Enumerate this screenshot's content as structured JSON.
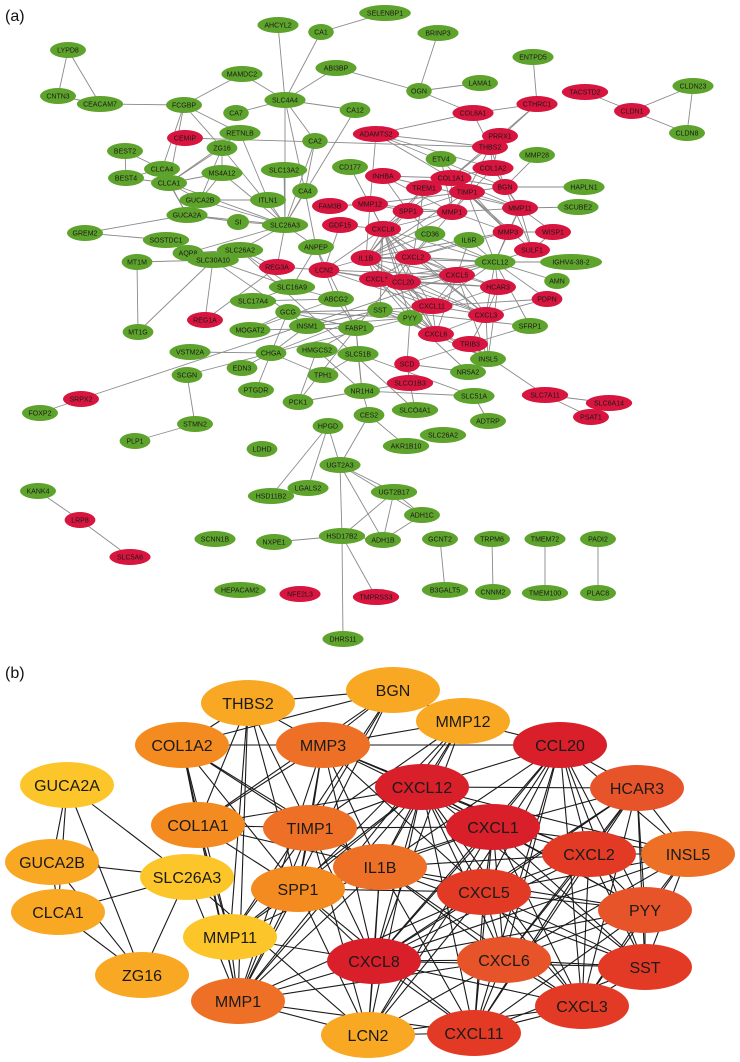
{
  "panel_a": {
    "label": "(a)",
    "colors": {
      "up": "#d7153f",
      "down": "#5ea32c",
      "edge": "#8a8a8a"
    },
    "nodes": [
      {
        "id": "SELENBP1",
        "c": "g"
      },
      {
        "id": "AHCYL2",
        "c": "g"
      },
      {
        "id": "CA1",
        "c": "g"
      },
      {
        "id": "BRINP3",
        "c": "g"
      },
      {
        "id": "LYPD8",
        "c": "g"
      },
      {
        "id": "MAMDC2",
        "c": "g"
      },
      {
        "id": "ABI3BP",
        "c": "g"
      },
      {
        "id": "ENTPD5",
        "c": "g"
      },
      {
        "id": "CNTN3",
        "c": "g"
      },
      {
        "id": "CEACAM7",
        "c": "g"
      },
      {
        "id": "FCGBP",
        "c": "g"
      },
      {
        "id": "CA7",
        "c": "g"
      },
      {
        "id": "SLC4A4",
        "c": "g"
      },
      {
        "id": "OGN",
        "c": "g"
      },
      {
        "id": "LAMA1",
        "c": "g"
      },
      {
        "id": "TACSTD2",
        "c": "r"
      },
      {
        "id": "CLDN1",
        "c": "r"
      },
      {
        "id": "CLDN23",
        "c": "g"
      },
      {
        "id": "RETNLB",
        "c": "g"
      },
      {
        "id": "CA12",
        "c": "g"
      },
      {
        "id": "COL8A1",
        "c": "r"
      },
      {
        "id": "CTHRC1",
        "c": "r"
      },
      {
        "id": "CEMIP",
        "c": "r"
      },
      {
        "id": "ADAMTS2",
        "c": "r"
      },
      {
        "id": "THBS2",
        "c": "r"
      },
      {
        "id": "PRRX1",
        "c": "r"
      },
      {
        "id": "CLDN8",
        "c": "g"
      },
      {
        "id": "BEST2",
        "c": "g"
      },
      {
        "id": "ZG16",
        "c": "g"
      },
      {
        "id": "CA2",
        "c": "g"
      },
      {
        "id": "MMP28",
        "c": "g"
      },
      {
        "id": "COL1A2",
        "c": "r"
      },
      {
        "id": "CLCA4",
        "c": "g"
      },
      {
        "id": "MS4A12",
        "c": "g"
      },
      {
        "id": "SLC13A2",
        "c": "g"
      },
      {
        "id": "CD177",
        "c": "g"
      },
      {
        "id": "ETV4",
        "c": "g"
      },
      {
        "id": "CLCA1",
        "c": "g"
      },
      {
        "id": "INHBA",
        "c": "r"
      },
      {
        "id": "COL1A1",
        "c": "r"
      },
      {
        "id": "BGN",
        "c": "r"
      },
      {
        "id": "HAPLN1",
        "c": "g"
      },
      {
        "id": "BEST4",
        "c": "g"
      },
      {
        "id": "GUCA2B",
        "c": "g"
      },
      {
        "id": "ITLN1",
        "c": "g"
      },
      {
        "id": "TREM1",
        "c": "r"
      },
      {
        "id": "TIMP1",
        "c": "r"
      },
      {
        "id": "CA4",
        "c": "g"
      },
      {
        "id": "FAM3B",
        "c": "r"
      },
      {
        "id": "MMP12",
        "c": "r"
      },
      {
        "id": "SPP1",
        "c": "r"
      },
      {
        "id": "MMP1",
        "c": "r"
      },
      {
        "id": "MMP11",
        "c": "r"
      },
      {
        "id": "SCUBE2",
        "c": "g"
      },
      {
        "id": "GUCA2A",
        "c": "g"
      },
      {
        "id": "SI",
        "c": "g"
      },
      {
        "id": "SLC26A3",
        "c": "g"
      },
      {
        "id": "GDF15",
        "c": "r"
      },
      {
        "id": "CXCL8",
        "c": "r"
      },
      {
        "id": "CD36",
        "c": "g"
      },
      {
        "id": "MMP3",
        "c": "r"
      },
      {
        "id": "WISP1",
        "c": "r"
      },
      {
        "id": "GREM2",
        "c": "g"
      },
      {
        "id": "SOSTDC1",
        "c": "g"
      },
      {
        "id": "AQP8",
        "c": "g"
      },
      {
        "id": "SLC26A2",
        "c": "g"
      },
      {
        "id": "ANPEP",
        "c": "g"
      },
      {
        "id": "IL1B",
        "c": "r"
      },
      {
        "id": "CXCL2",
        "c": "r"
      },
      {
        "id": "IL6R",
        "c": "g"
      },
      {
        "id": "SULF1",
        "c": "r"
      },
      {
        "id": "REG3A",
        "c": "r"
      },
      {
        "id": "LCN2",
        "c": "r"
      },
      {
        "id": "CXCL12",
        "c": "g"
      },
      {
        "id": "IGHV4-38-2",
        "c": "g"
      },
      {
        "id": "MT1M",
        "c": "g"
      },
      {
        "id": "SLC30A10",
        "c": "g"
      },
      {
        "id": "SLC16A9",
        "c": "g"
      },
      {
        "id": "CXCL1",
        "c": "r"
      },
      {
        "id": "CCL20",
        "c": "r"
      },
      {
        "id": "CXCL5",
        "c": "r"
      },
      {
        "id": "HCAR3",
        "c": "r"
      },
      {
        "id": "AMN",
        "c": "g"
      },
      {
        "id": "SLC17A4",
        "c": "g"
      },
      {
        "id": "ABCG2",
        "c": "g"
      },
      {
        "id": "CXCL11",
        "c": "r"
      },
      {
        "id": "CXCL3",
        "c": "r"
      },
      {
        "id": "PDPN",
        "c": "r"
      },
      {
        "id": "REG1A",
        "c": "r"
      },
      {
        "id": "GCG",
        "c": "g"
      },
      {
        "id": "SST",
        "c": "g"
      },
      {
        "id": "SFRP1",
        "c": "g"
      },
      {
        "id": "MT1G",
        "c": "g"
      },
      {
        "id": "MOGAT2",
        "c": "g"
      },
      {
        "id": "INSM1",
        "c": "g"
      },
      {
        "id": "FABP1",
        "c": "g"
      },
      {
        "id": "PYY",
        "c": "g"
      },
      {
        "id": "CXCL6",
        "c": "r"
      },
      {
        "id": "TRIB3",
        "c": "r"
      },
      {
        "id": "VSTM2A",
        "c": "g"
      },
      {
        "id": "CHGA",
        "c": "g"
      },
      {
        "id": "HMGCS2",
        "c": "g"
      },
      {
        "id": "SLC51B",
        "c": "g"
      },
      {
        "id": "INSL5",
        "c": "g"
      },
      {
        "id": "EDN3",
        "c": "g"
      },
      {
        "id": "SCGN",
        "c": "g"
      },
      {
        "id": "TPH1",
        "c": "g"
      },
      {
        "id": "SCD",
        "c": "r"
      },
      {
        "id": "NR5A2",
        "c": "g"
      },
      {
        "id": "SRPX2",
        "c": "r"
      },
      {
        "id": "PTGDR",
        "c": "g"
      },
      {
        "id": "NR1H4",
        "c": "g"
      },
      {
        "id": "SLCO1B3",
        "c": "r"
      },
      {
        "id": "SLC7A11",
        "c": "r"
      },
      {
        "id": "SLC6A14",
        "c": "r"
      },
      {
        "id": "FOXP2",
        "c": "g"
      },
      {
        "id": "PCK1",
        "c": "g"
      },
      {
        "id": "SLC51A",
        "c": "g"
      },
      {
        "id": "STMN2",
        "c": "g"
      },
      {
        "id": "CES2",
        "c": "g"
      },
      {
        "id": "SLCO4A1",
        "c": "g"
      },
      {
        "id": "PSAT1",
        "c": "r"
      },
      {
        "id": "HPGD",
        "c": "g"
      },
      {
        "id": "ADTRP",
        "c": "g"
      },
      {
        "id": "LDHD",
        "c": "g"
      },
      {
        "id": "AKR1B10",
        "c": "g"
      },
      {
        "id": "SLC26A2",
        "c": "g"
      },
      {
        "id": "PLP1",
        "c": "g"
      },
      {
        "id": "UGT2A3",
        "c": "g"
      },
      {
        "id": "KANK4",
        "c": "g"
      },
      {
        "id": "HSD11B2",
        "c": "g"
      },
      {
        "id": "LGALS2",
        "c": "g"
      },
      {
        "id": "UGT2B17",
        "c": "g"
      },
      {
        "id": "LRP8",
        "c": "r"
      },
      {
        "id": "ADH1C",
        "c": "g"
      },
      {
        "id": "SCNN1B",
        "c": "g"
      },
      {
        "id": "NXPE1",
        "c": "g"
      },
      {
        "id": "HSD17B2",
        "c": "g"
      },
      {
        "id": "ADH1B",
        "c": "g"
      },
      {
        "id": "GCNT2",
        "c": "g"
      },
      {
        "id": "TRPM6",
        "c": "g"
      },
      {
        "id": "TMEM72",
        "c": "g"
      },
      {
        "id": "PADI2",
        "c": "g"
      },
      {
        "id": "SLC5A6",
        "c": "r"
      },
      {
        "id": "HEPACAM2",
        "c": "g"
      },
      {
        "id": "NFE2L3",
        "c": "r"
      },
      {
        "id": "TMPRSS3",
        "c": "r"
      },
      {
        "id": "B3GALT5",
        "c": "g"
      },
      {
        "id": "CNNM2",
        "c": "g"
      },
      {
        "id": "TMEM100",
        "c": "g"
      },
      {
        "id": "PLAC8",
        "c": "g"
      },
      {
        "id": "DHRS11",
        "c": "g"
      }
    ]
  },
  "panel_b": {
    "label": "(b)",
    "colors": {
      "c1": "#d81f2a",
      "c2": "#e33a26",
      "c3": "#e8542a",
      "c4": "#ed7026",
      "c5": "#f48b20",
      "c6": "#f9a823",
      "c7": "#fcc62b",
      "edge": "#1a1a1a"
    },
    "nodes": [
      {
        "id": "THBS2",
        "c": "c6"
      },
      {
        "id": "BGN",
        "c": "c6"
      },
      {
        "id": "MMP12",
        "c": "c6"
      },
      {
        "id": "COL1A2",
        "c": "c5"
      },
      {
        "id": "MMP3",
        "c": "c4"
      },
      {
        "id": "CCL20",
        "c": "c1"
      },
      {
        "id": "GUCA2A",
        "c": "c7"
      },
      {
        "id": "CXCL12",
        "c": "c1"
      },
      {
        "id": "HCAR3",
        "c": "c3"
      },
      {
        "id": "TIMP1",
        "c": "c4"
      },
      {
        "id": "COL1A1",
        "c": "c5"
      },
      {
        "id": "CXCL1",
        "c": "c1"
      },
      {
        "id": "GUCA2B",
        "c": "c6"
      },
      {
        "id": "CXCL2",
        "c": "c2"
      },
      {
        "id": "INSL5",
        "c": "c4"
      },
      {
        "id": "SLC26A3",
        "c": "c7"
      },
      {
        "id": "IL1B",
        "c": "c4"
      },
      {
        "id": "SPP1",
        "c": "c5"
      },
      {
        "id": "CXCL5",
        "c": "c2"
      },
      {
        "id": "CLCA1",
        "c": "c6"
      },
      {
        "id": "PYY",
        "c": "c3"
      },
      {
        "id": "MMP11",
        "c": "c7"
      },
      {
        "id": "CXCL8",
        "c": "c1"
      },
      {
        "id": "CXCL6",
        "c": "c3"
      },
      {
        "id": "SST",
        "c": "c2"
      },
      {
        "id": "ZG16",
        "c": "c6"
      },
      {
        "id": "MMP1",
        "c": "c4"
      },
      {
        "id": "CXCL3",
        "c": "c2"
      },
      {
        "id": "LCN2",
        "c": "c6"
      },
      {
        "id": "CXCL11",
        "c": "c2"
      }
    ]
  }
}
